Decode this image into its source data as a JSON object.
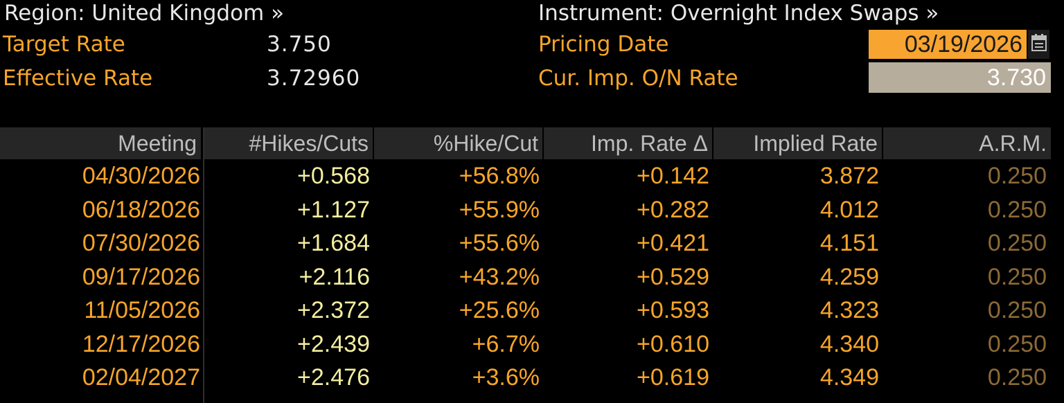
{
  "header": {
    "region": "Region: United Kingdom »",
    "instrument": "Instrument: Overnight Index Swaps »",
    "target_rate_label": "Target Rate",
    "target_rate_value": "3.750",
    "effective_rate_label": "Effective Rate",
    "effective_rate_value": "3.72960",
    "pricing_date_label": "Pricing Date",
    "pricing_date_value": "03/19/2026",
    "cur_imp_label": "Cur. Imp. O/N Rate",
    "cur_imp_value": "3.730"
  },
  "table": {
    "columns": [
      "Meeting",
      "#Hikes/Cuts",
      "%Hike/Cut",
      "Imp. Rate Δ",
      "Implied Rate",
      "A.R.M."
    ],
    "rows": [
      [
        "04/30/2026",
        "+0.568",
        "+56.8%",
        "+0.142",
        "3.872",
        "0.250"
      ],
      [
        "06/18/2026",
        "+1.127",
        "+55.9%",
        "+0.282",
        "4.012",
        "0.250"
      ],
      [
        "07/30/2026",
        "+1.684",
        "+55.6%",
        "+0.421",
        "4.151",
        "0.250"
      ],
      [
        "09/17/2026",
        "+2.116",
        "+43.2%",
        "+0.529",
        "4.259",
        "0.250"
      ],
      [
        "11/05/2026",
        "+2.372",
        "+25.6%",
        "+0.593",
        "4.323",
        "0.250"
      ],
      [
        "12/17/2026",
        "+2.439",
        "+6.7%",
        "+0.610",
        "4.340",
        "0.250"
      ],
      [
        "02/04/2027",
        "+2.476",
        "+3.6%",
        "+0.619",
        "4.349",
        "0.250"
      ]
    ]
  },
  "icons": {
    "calendar": "calendar-icon"
  },
  "colors": {
    "background": "#000000",
    "label_orange": "#f7a52a",
    "input_orange": "#f8a431",
    "readonly_box": "#b7ad9c",
    "header_bg": "#262626",
    "hikes_text": "#f3eea0",
    "arm_text": "#8c6a36"
  }
}
